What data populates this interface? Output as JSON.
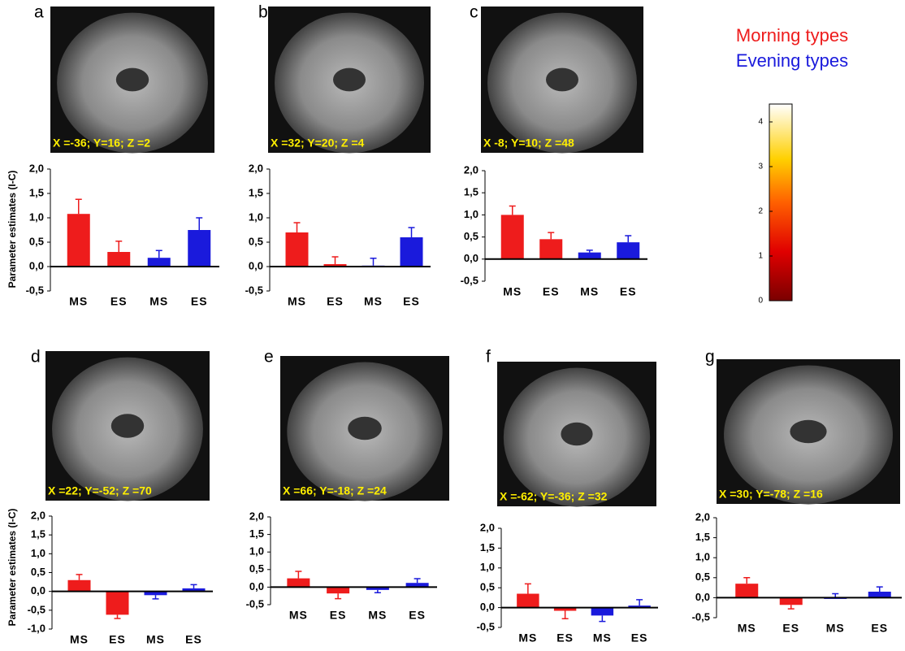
{
  "legend": [
    {
      "name": "Morning types",
      "color": "#ee1c1c"
    },
    {
      "name": "Evening types",
      "color": "#1a1adc"
    }
  ],
  "colorbar": {
    "lim": [
      0,
      4.4
    ],
    "ticks": [
      0,
      1,
      2,
      3,
      4
    ]
  },
  "chart_data": [
    {
      "type": "bar",
      "panel": "a",
      "coords": "X =-36; Y=16; Z =2",
      "ylabel": "Parameter estimates (I-C)",
      "categories": [
        "MS",
        "ES",
        "MS",
        "ES"
      ],
      "values": [
        1.08,
        0.3,
        0.18,
        0.75
      ],
      "errors": [
        0.3,
        0.22,
        0.15,
        0.25
      ],
      "colors": [
        "#ee1c1c",
        "#ee1c1c",
        "#1a1adc",
        "#1a1adc"
      ],
      "ylim": [
        -0.5,
        2.0
      ],
      "yticks": [
        {
          "value": -0.5,
          "label": "-0,5"
        },
        {
          "value": 0,
          "label": "0,0"
        },
        {
          "value": 0.5,
          "label": "0,5"
        },
        {
          "value": 1,
          "label": "1,0"
        },
        {
          "value": 1.5,
          "label": "1,5"
        },
        {
          "value": 2,
          "label": "2,0"
        }
      ]
    },
    {
      "type": "bar",
      "panel": "b",
      "coords": "X =32; Y=20; Z =4",
      "categories": [
        "MS",
        "ES",
        "MS",
        "ES"
      ],
      "values": [
        0.7,
        0.05,
        0.02,
        0.6
      ],
      "errors": [
        0.2,
        0.15,
        0.15,
        0.2
      ],
      "colors": [
        "#ee1c1c",
        "#ee1c1c",
        "#1a1adc",
        "#1a1adc"
      ],
      "ylim": [
        -0.5,
        2.0
      ],
      "yticks": [
        {
          "value": -0.5,
          "label": "-0,5"
        },
        {
          "value": 0,
          "label": "0,0"
        },
        {
          "value": 0.5,
          "label": "0,5"
        },
        {
          "value": 1,
          "label": "1,0"
        },
        {
          "value": 1.5,
          "label": "1,5"
        },
        {
          "value": 2,
          "label": "2,0"
        }
      ]
    },
    {
      "type": "bar",
      "panel": "c",
      "coords": "X  -8; Y=10; Z =48",
      "categories": [
        "MS",
        "ES",
        "MS",
        "ES"
      ],
      "values": [
        1.0,
        0.45,
        0.15,
        0.38
      ],
      "errors": [
        0.2,
        0.15,
        0.05,
        0.15
      ],
      "colors": [
        "#ee1c1c",
        "#ee1c1c",
        "#1a1adc",
        "#1a1adc"
      ],
      "ylim": [
        -0.5,
        2.0
      ],
      "yticks": [
        {
          "value": -0.5,
          "label": "-0,5"
        },
        {
          "value": 0,
          "label": "0,0"
        },
        {
          "value": 0.5,
          "label": "0,5"
        },
        {
          "value": 1,
          "label": "1,0"
        },
        {
          "value": 1.5,
          "label": "1,5"
        },
        {
          "value": 2,
          "label": "2,0"
        }
      ]
    },
    {
      "type": "bar",
      "panel": "d",
      "coords": "X =22; Y=-52; Z =70",
      "ylabel": "Parameter estimates (I-C)",
      "categories": [
        "MS",
        "ES",
        "MS",
        "ES"
      ],
      "values": [
        0.3,
        -0.62,
        -0.1,
        0.08
      ],
      "errors": [
        0.15,
        0.1,
        0.1,
        0.1
      ],
      "colors": [
        "#ee1c1c",
        "#ee1c1c",
        "#1a1adc",
        "#1a1adc"
      ],
      "ylim": [
        -1.0,
        2.0
      ],
      "yticks": [
        {
          "value": -1,
          "label": "-1,0"
        },
        {
          "value": -0.5,
          "label": "-0,5"
        },
        {
          "value": 0,
          "label": "0,0"
        },
        {
          "value": 0.5,
          "label": "0,5"
        },
        {
          "value": 1,
          "label": "1,0"
        },
        {
          "value": 1.5,
          "label": "1,5"
        },
        {
          "value": 2,
          "label": "2,0"
        }
      ]
    },
    {
      "type": "bar",
      "panel": "e",
      "coords": "X =66; Y=-18; Z =24",
      "categories": [
        "MS",
        "ES",
        "MS",
        "ES"
      ],
      "values": [
        0.25,
        -0.18,
        -0.08,
        0.12
      ],
      "errors": [
        0.2,
        0.15,
        0.08,
        0.12
      ],
      "colors": [
        "#ee1c1c",
        "#ee1c1c",
        "#1a1adc",
        "#1a1adc"
      ],
      "ylim": [
        -0.5,
        2.0
      ],
      "yticks": [
        {
          "value": -0.5,
          "label": "-0,5"
        },
        {
          "value": 0,
          "label": "0,0"
        },
        {
          "value": 0.5,
          "label": "0,5"
        },
        {
          "value": 1,
          "label": "1,0"
        },
        {
          "value": 1.5,
          "label": "1,5"
        },
        {
          "value": 2,
          "label": "2,0"
        }
      ]
    },
    {
      "type": "bar",
      "panel": "f",
      "coords": "X =-62; Y=-36; Z =32",
      "categories": [
        "MS",
        "ES",
        "MS",
        "ES"
      ],
      "values": [
        0.35,
        -0.08,
        -0.2,
        0.05
      ],
      "errors": [
        0.25,
        0.2,
        0.15,
        0.15
      ],
      "colors": [
        "#ee1c1c",
        "#ee1c1c",
        "#1a1adc",
        "#1a1adc"
      ],
      "ylim": [
        -0.5,
        2.0
      ],
      "yticks": [
        {
          "value": -0.5,
          "label": "-0,5"
        },
        {
          "value": 0,
          "label": "0,0"
        },
        {
          "value": 0.5,
          "label": "0,5"
        },
        {
          "value": 1,
          "label": "1,0"
        },
        {
          "value": 1.5,
          "label": "1,5"
        },
        {
          "value": 2,
          "label": "2,0"
        }
      ]
    },
    {
      "type": "bar",
      "panel": "g",
      "coords": "X =30; Y=-78; Z =16",
      "categories": [
        "MS",
        "ES",
        "MS",
        "ES"
      ],
      "values": [
        0.35,
        -0.18,
        0.0,
        0.15
      ],
      "errors": [
        0.15,
        0.1,
        0.1,
        0.12
      ],
      "colors": [
        "#ee1c1c",
        "#ee1c1c",
        "#1a1adc",
        "#1a1adc"
      ],
      "ylim": [
        -0.5,
        2.0
      ],
      "yticks": [
        {
          "value": -0.5,
          "label": "-0,5"
        },
        {
          "value": 0,
          "label": "0,0"
        },
        {
          "value": 0.5,
          "label": "0,5"
        },
        {
          "value": 1,
          "label": "1,0"
        },
        {
          "value": 1.5,
          "label": "1,5"
        },
        {
          "value": 2,
          "label": "2,0"
        }
      ]
    }
  ]
}
